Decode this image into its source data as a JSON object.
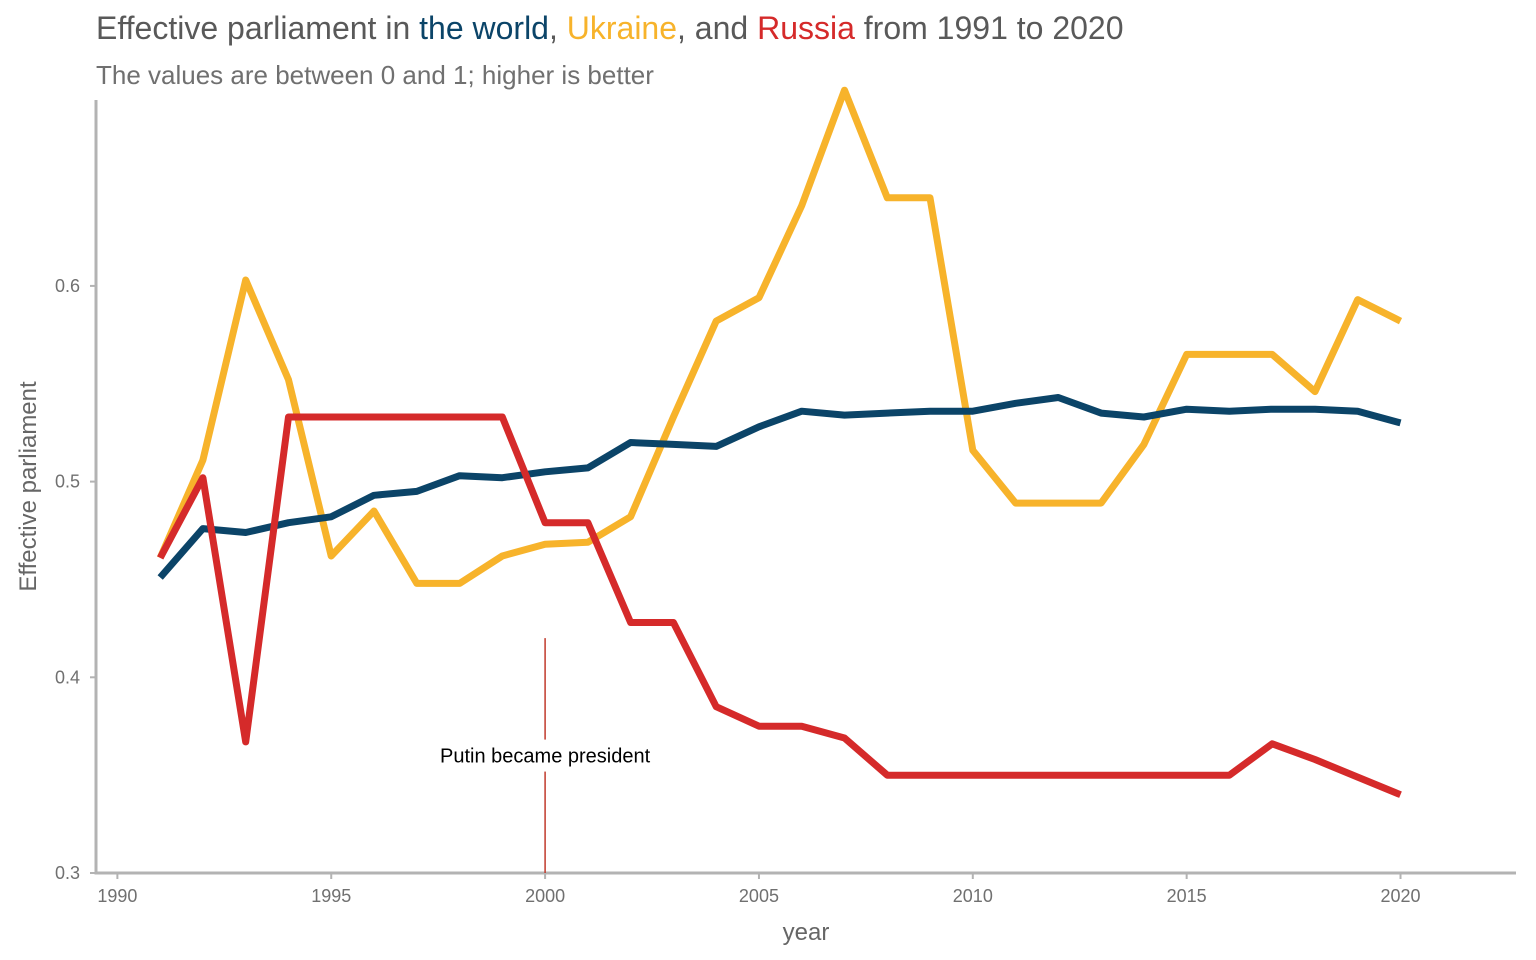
{
  "chart_data": {
    "type": "line",
    "title_parts": [
      {
        "text": "Effective parliament in ",
        "color": "#595959"
      },
      {
        "text": "the world",
        "color": "#0b4468"
      },
      {
        "text": ", ",
        "color": "#595959"
      },
      {
        "text": "Ukraine",
        "color": "#f7b32b"
      },
      {
        "text": ", and ",
        "color": "#595959"
      },
      {
        "text": "Russia",
        "color": "#d52a2a"
      },
      {
        "text": " from 1991 to 2020",
        "color": "#595959"
      }
    ],
    "subtitle": "The values are between 0 and 1; higher is better",
    "xlabel": "year",
    "ylabel": "Effective parliament",
    "xlim": [
      1989.5,
      2022.7
    ],
    "ylim": [
      0.3,
      0.695
    ],
    "x_ticks": [
      1990,
      1995,
      2000,
      2005,
      2010,
      2015,
      2020
    ],
    "y_ticks": [
      0.3,
      0.4,
      0.5,
      0.6
    ],
    "y_tick_labels": [
      "0.3",
      "0.4",
      "0.5",
      "0.6"
    ],
    "x": [
      1991,
      1992,
      1993,
      1994,
      1995,
      1996,
      1997,
      1998,
      1999,
      2000,
      2001,
      2002,
      2003,
      2004,
      2005,
      2006,
      2007,
      2008,
      2009,
      2010,
      2011,
      2012,
      2013,
      2014,
      2015,
      2016,
      2017,
      2018,
      2019,
      2020
    ],
    "series": [
      {
        "id": "ukraine",
        "color": "#f7b32b",
        "values": [
          0.461,
          0.511,
          0.603,
          0.552,
          0.462,
          0.485,
          0.448,
          0.448,
          0.462,
          0.468,
          0.469,
          0.482,
          0.533,
          0.582,
          0.594,
          0.641,
          0.7,
          0.645,
          0.645,
          0.516,
          0.489,
          0.489,
          0.489,
          0.519,
          0.565,
          0.565,
          0.565,
          0.546,
          0.593,
          0.582
        ]
      },
      {
        "id": "world",
        "color": "#0b4468",
        "values": [
          0.451,
          0.476,
          0.474,
          0.479,
          0.482,
          0.493,
          0.495,
          0.503,
          0.502,
          0.505,
          0.507,
          0.52,
          0.519,
          0.518,
          0.528,
          0.536,
          0.534,
          0.535,
          0.536,
          0.536,
          0.54,
          0.543,
          0.535,
          0.533,
          0.537,
          0.536,
          0.537,
          0.537,
          0.536,
          0.53
        ]
      },
      {
        "id": "russia",
        "color": "#d52a2a",
        "values": [
          0.461,
          0.502,
          0.367,
          0.533,
          0.533,
          0.533,
          0.533,
          0.533,
          0.533,
          0.479,
          0.479,
          0.428,
          0.428,
          0.385,
          0.375,
          0.375,
          0.369,
          0.35,
          0.35,
          0.35,
          0.35,
          0.35,
          0.35,
          0.35,
          0.35,
          0.35,
          0.366,
          0.358,
          0.349,
          0.34
        ]
      }
    ],
    "annotation": {
      "text": "Putin became president",
      "x": 2000,
      "line_y": [
        0.3,
        0.42
      ],
      "text_y": 0.36,
      "color": "#c0392b"
    },
    "grid": false,
    "legend": "none"
  }
}
